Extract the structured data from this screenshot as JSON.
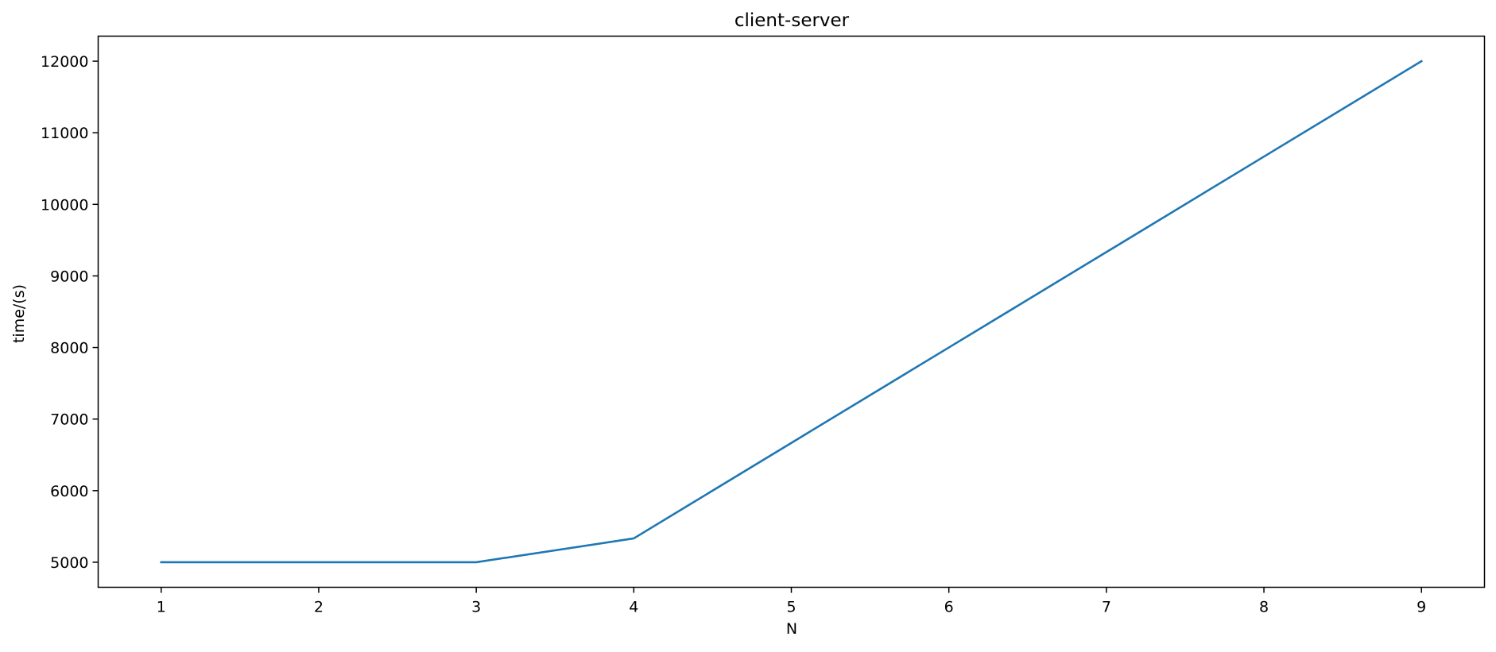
{
  "chart_data": {
    "type": "line",
    "title": "client-server",
    "xlabel": "N",
    "ylabel": "time/(s)",
    "x": [
      1,
      2,
      3,
      4,
      5,
      6,
      7,
      8,
      9
    ],
    "series": [
      {
        "values": [
          5000,
          5000,
          5000,
          5333,
          6667,
          8000,
          9333,
          10667,
          12000
        ],
        "color": "#1f77b4"
      }
    ],
    "xlim": [
      0.6,
      9.4
    ],
    "ylim": [
      4650,
      12350
    ],
    "xticks": [
      1,
      2,
      3,
      4,
      5,
      6,
      7,
      8,
      9
    ],
    "yticks": [
      5000,
      6000,
      7000,
      8000,
      9000,
      10000,
      11000,
      12000
    ],
    "grid": false,
    "legend": "none"
  }
}
